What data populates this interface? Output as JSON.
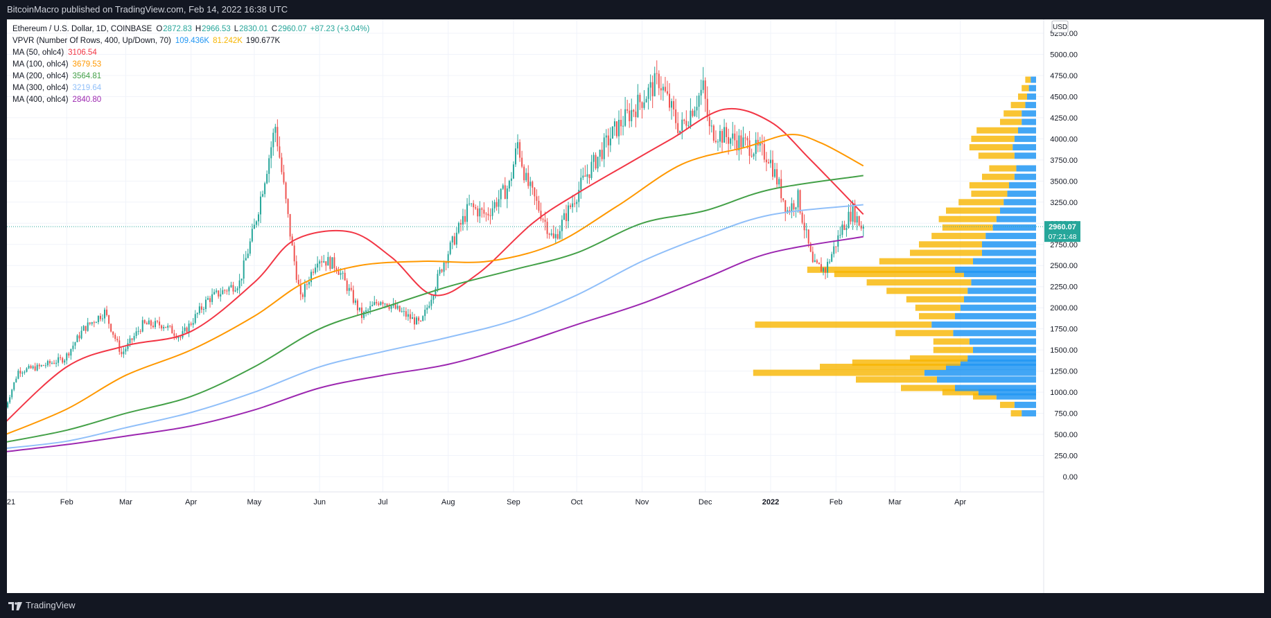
{
  "header": {
    "text": "BitcoinMacro published on TradingView.com, Feb 14, 2022 16:38 UTC"
  },
  "footer": {
    "brand": "TradingView"
  },
  "legend": {
    "symbol": "Ethereum / U.S. Dollar, 1D, COINBASE",
    "ohlc": [
      {
        "k": "O",
        "v": "2872.83"
      },
      {
        "k": "H",
        "v": "2966.53"
      },
      {
        "k": "L",
        "v": "2830.01"
      },
      {
        "k": "C",
        "v": "2960.07"
      }
    ],
    "change": "+87.23 (+3.04%)",
    "vpvr": {
      "label": "VPVR (Number Of Rows, 400, Up/Down, 70)",
      "values": [
        {
          "v": "109.436K",
          "color": "#2196f3"
        },
        {
          "v": "81.242K",
          "color": "#f7b500"
        },
        {
          "v": "190.677K",
          "color": "#131722"
        }
      ]
    },
    "mas": [
      {
        "label": "MA (50, ohlc4)",
        "value": "3106.54",
        "color": "#f23645"
      },
      {
        "label": "MA (100, ohlc4)",
        "value": "3679.53",
        "color": "#ff9800"
      },
      {
        "label": "MA (200, ohlc4)",
        "value": "3564.81",
        "color": "#43a047"
      },
      {
        "label": "MA (300, ohlc4)",
        "value": "3219.64",
        "color": "#90bff9"
      },
      {
        "label": "MA (400, ohlc4)",
        "value": "2840.80",
        "color": "#9c27b0"
      }
    ]
  },
  "price_axis": {
    "currency": "USD",
    "ticks": [
      "5250.00",
      "5000.00",
      "4750.00",
      "4500.00",
      "4250.00",
      "4000.00",
      "3750.00",
      "3500.00",
      "3250.00",
      "3000.00",
      "2750.00",
      "2500.00",
      "2250.00",
      "2000.00",
      "1750.00",
      "1500.00",
      "1250.00",
      "1000.00",
      "750.00",
      "500.00",
      "250.00",
      "0.00"
    ],
    "current_price": "2960.07",
    "countdown": "07:21:48"
  },
  "chart_data": {
    "type": "line",
    "title": "Ethereum / U.S. Dollar, 1D, COINBASE",
    "ylim": [
      -100,
      5400
    ],
    "grid": true,
    "x_tick_labels": [
      "21",
      "Feb",
      "Mar",
      "Apr",
      "May",
      "Jun",
      "Jul",
      "Aug",
      "Sep",
      "Oct",
      "Nov",
      "Dec",
      "2022",
      "Feb",
      "Mar",
      "Apr"
    ],
    "price_anchors": [
      {
        "x": "2021-01-03",
        "y": 750
      },
      {
        "x": "2021-01-10",
        "y": 1250
      },
      {
        "x": "2021-01-20",
        "y": 1300
      },
      {
        "x": "2021-02-01",
        "y": 1400
      },
      {
        "x": "2021-02-10",
        "y": 1750
      },
      {
        "x": "2021-02-20",
        "y": 1950
      },
      {
        "x": "2021-02-28",
        "y": 1450
      },
      {
        "x": "2021-03-10",
        "y": 1800
      },
      {
        "x": "2021-03-20",
        "y": 1800
      },
      {
        "x": "2021-03-28",
        "y": 1650
      },
      {
        "x": "2021-04-10",
        "y": 2100
      },
      {
        "x": "2021-04-25",
        "y": 2300
      },
      {
        "x": "2021-05-02",
        "y": 2950
      },
      {
        "x": "2021-05-12",
        "y": 4150
      },
      {
        "x": "2021-05-20",
        "y": 2700
      },
      {
        "x": "2021-05-24",
        "y": 2100
      },
      {
        "x": "2021-06-01",
        "y": 2600
      },
      {
        "x": "2021-06-10",
        "y": 2500
      },
      {
        "x": "2021-06-22",
        "y": 1900
      },
      {
        "x": "2021-07-01",
        "y": 2100
      },
      {
        "x": "2021-07-20",
        "y": 1800
      },
      {
        "x": "2021-07-31",
        "y": 2550
      },
      {
        "x": "2021-08-12",
        "y": 3200
      },
      {
        "x": "2021-08-20",
        "y": 3100
      },
      {
        "x": "2021-08-31",
        "y": 3450
      },
      {
        "x": "2021-09-04",
        "y": 3950
      },
      {
        "x": "2021-09-08",
        "y": 3500
      },
      {
        "x": "2021-09-21",
        "y": 2800
      },
      {
        "x": "2021-10-06",
        "y": 3550
      },
      {
        "x": "2021-10-20",
        "y": 4100
      },
      {
        "x": "2021-11-10",
        "y": 4700
      },
      {
        "x": "2021-11-20",
        "y": 4100
      },
      {
        "x": "2021-12-01",
        "y": 4600
      },
      {
        "x": "2021-12-04",
        "y": 4100
      },
      {
        "x": "2021-12-20",
        "y": 3950
      },
      {
        "x": "2022-01-01",
        "y": 3800
      },
      {
        "x": "2022-01-10",
        "y": 3150
      },
      {
        "x": "2022-01-15",
        "y": 3300
      },
      {
        "x": "2022-01-22",
        "y": 2500
      },
      {
        "x": "2022-01-28",
        "y": 2450
      },
      {
        "x": "2022-02-05",
        "y": 2950
      },
      {
        "x": "2022-02-10",
        "y": 3150
      },
      {
        "x": "2022-02-14",
        "y": 2960
      }
    ],
    "series": [
      {
        "name": "MA (50, ohlc4)",
        "color": "#f23645",
        "points": [
          [
            "2021-01-01",
            600
          ],
          [
            "2021-02-01",
            1300
          ],
          [
            "2021-03-01",
            1550
          ],
          [
            "2021-04-01",
            1720
          ],
          [
            "2021-05-01",
            2300
          ],
          [
            "2021-05-20",
            2800
          ],
          [
            "2021-06-15",
            2900
          ],
          [
            "2021-07-05",
            2600
          ],
          [
            "2021-07-25",
            2150
          ],
          [
            "2021-08-15",
            2400
          ],
          [
            "2021-09-10",
            3000
          ],
          [
            "2021-10-01",
            3350
          ],
          [
            "2021-10-25",
            3700
          ],
          [
            "2021-11-15",
            4000
          ],
          [
            "2021-12-10",
            4350
          ],
          [
            "2022-01-01",
            4200
          ],
          [
            "2022-01-20",
            3750
          ],
          [
            "2022-02-14",
            3106
          ]
        ]
      },
      {
        "name": "MA (100, ohlc4)",
        "color": "#ff9800",
        "points": [
          [
            "2021-01-01",
            480
          ],
          [
            "2021-02-01",
            800
          ],
          [
            "2021-03-01",
            1200
          ],
          [
            "2021-04-01",
            1500
          ],
          [
            "2021-05-01",
            1900
          ],
          [
            "2021-05-25",
            2300
          ],
          [
            "2021-06-20",
            2500
          ],
          [
            "2021-07-20",
            2550
          ],
          [
            "2021-08-20",
            2550
          ],
          [
            "2021-09-20",
            2750
          ],
          [
            "2021-10-20",
            3200
          ],
          [
            "2021-11-20",
            3700
          ],
          [
            "2021-12-20",
            3900
          ],
          [
            "2022-01-10",
            4050
          ],
          [
            "2022-01-25",
            3950
          ],
          [
            "2022-02-14",
            3680
          ]
        ]
      },
      {
        "name": "MA (200, ohlc4)",
        "color": "#43a047",
        "points": [
          [
            "2021-01-01",
            400
          ],
          [
            "2021-02-01",
            550
          ],
          [
            "2021-03-01",
            750
          ],
          [
            "2021-04-01",
            950
          ],
          [
            "2021-05-01",
            1300
          ],
          [
            "2021-06-01",
            1750
          ],
          [
            "2021-07-01",
            2000
          ],
          [
            "2021-08-01",
            2250
          ],
          [
            "2021-09-01",
            2450
          ],
          [
            "2021-10-01",
            2650
          ],
          [
            "2021-11-01",
            3000
          ],
          [
            "2021-12-01",
            3150
          ],
          [
            "2022-01-01",
            3400
          ],
          [
            "2022-02-14",
            3565
          ]
        ]
      },
      {
        "name": "MA (300, ohlc4)",
        "color": "#90bff9",
        "points": [
          [
            "2021-01-01",
            330
          ],
          [
            "2021-02-01",
            420
          ],
          [
            "2021-03-01",
            580
          ],
          [
            "2021-04-01",
            760
          ],
          [
            "2021-05-01",
            1000
          ],
          [
            "2021-06-01",
            1300
          ],
          [
            "2021-07-01",
            1480
          ],
          [
            "2021-08-01",
            1650
          ],
          [
            "2021-09-01",
            1850
          ],
          [
            "2021-10-01",
            2150
          ],
          [
            "2021-11-01",
            2550
          ],
          [
            "2021-12-01",
            2850
          ],
          [
            "2022-01-01",
            3100
          ],
          [
            "2022-02-14",
            3220
          ]
        ]
      },
      {
        "name": "MA (400, ohlc4)",
        "color": "#9c27b0",
        "points": [
          [
            "2021-01-01",
            290
          ],
          [
            "2021-02-01",
            380
          ],
          [
            "2021-03-01",
            480
          ],
          [
            "2021-04-01",
            600
          ],
          [
            "2021-05-01",
            790
          ],
          [
            "2021-06-01",
            1050
          ],
          [
            "2021-07-01",
            1200
          ],
          [
            "2021-08-01",
            1330
          ],
          [
            "2021-09-01",
            1550
          ],
          [
            "2021-10-01",
            1800
          ],
          [
            "2021-11-01",
            2050
          ],
          [
            "2021-12-01",
            2350
          ],
          [
            "2022-01-01",
            2650
          ],
          [
            "2022-02-14",
            2841
          ]
        ]
      }
    ],
    "volume_profile": {
      "up_color": "#2196f3",
      "down_color": "#f7b500",
      "rows": [
        [
          750,
          0.08,
          0.06
        ],
        [
          850,
          0.12,
          0.08
        ],
        [
          950,
          0.22,
          0.13
        ],
        [
          1000,
          0.32,
          0.2
        ],
        [
          1050,
          0.45,
          0.3
        ],
        [
          1150,
          0.55,
          0.45
        ],
        [
          1230,
          0.62,
          0.95
        ],
        [
          1300,
          0.5,
          0.7
        ],
        [
          1350,
          0.42,
          0.6
        ],
        [
          1400,
          0.38,
          0.32
        ],
        [
          1500,
          0.35,
          0.22
        ],
        [
          1600,
          0.37,
          0.2
        ],
        [
          1700,
          0.46,
          0.32
        ],
        [
          1800,
          0.58,
          0.98
        ],
        [
          1900,
          0.45,
          0.2
        ],
        [
          2000,
          0.42,
          0.25
        ],
        [
          2100,
          0.4,
          0.32
        ],
        [
          2200,
          0.38,
          0.45
        ],
        [
          2300,
          0.36,
          0.58
        ],
        [
          2400,
          0.4,
          0.72
        ],
        [
          2450,
          0.45,
          0.82
        ],
        [
          2550,
          0.35,
          0.52
        ],
        [
          2650,
          0.3,
          0.4
        ],
        [
          2750,
          0.3,
          0.35
        ],
        [
          2850,
          0.28,
          0.3
        ],
        [
          2950,
          0.24,
          0.28
        ],
        [
          3050,
          0.22,
          0.32
        ],
        [
          3150,
          0.2,
          0.3
        ],
        [
          3250,
          0.18,
          0.25
        ],
        [
          3350,
          0.16,
          0.2
        ],
        [
          3450,
          0.15,
          0.22
        ],
        [
          3550,
          0.12,
          0.18
        ],
        [
          3650,
          0.11,
          0.15
        ],
        [
          3800,
          0.12,
          0.2
        ],
        [
          3900,
          0.13,
          0.24
        ],
        [
          4000,
          0.12,
          0.24
        ],
        [
          4100,
          0.1,
          0.23
        ],
        [
          4200,
          0.08,
          0.12
        ],
        [
          4300,
          0.08,
          0.1
        ],
        [
          4400,
          0.06,
          0.08
        ],
        [
          4500,
          0.05,
          0.05
        ],
        [
          4600,
          0.04,
          0.04
        ],
        [
          4700,
          0.03,
          0.03
        ]
      ]
    }
  }
}
